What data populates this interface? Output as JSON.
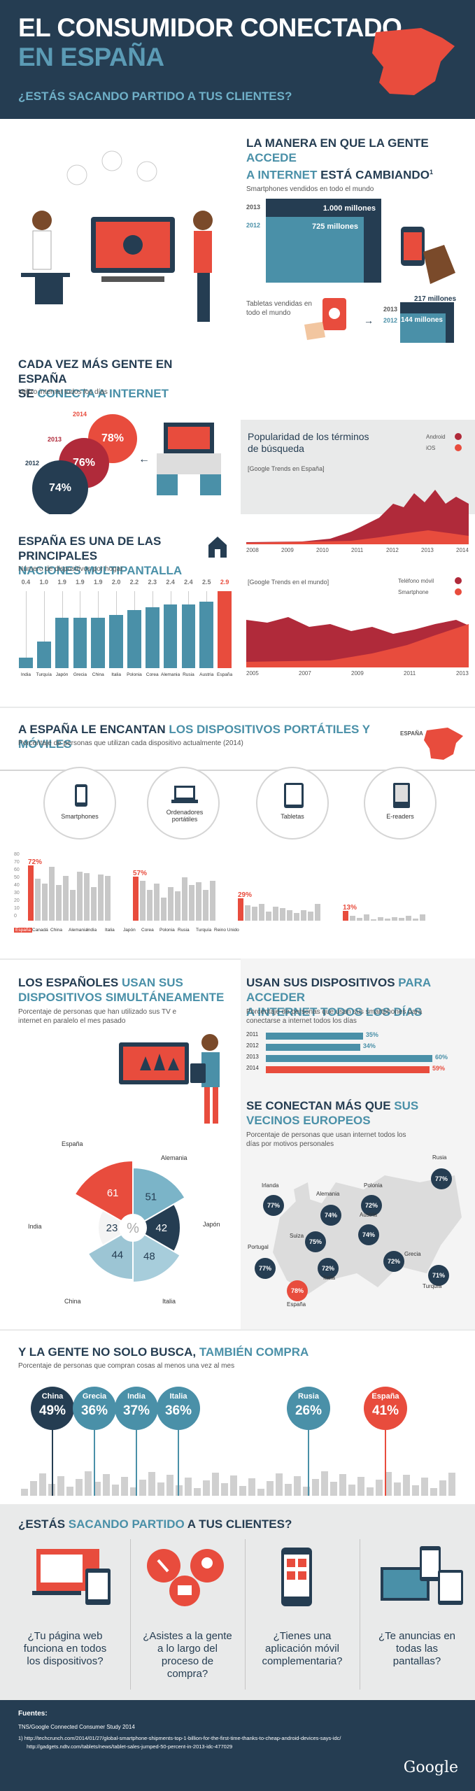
{
  "header": {
    "title_line1": "EL CONSUMIDOR CONECTADO",
    "title_line2": "EN ESPAÑA",
    "subtitle": "¿ESTÁS SACANDO PARTIDO A TUS CLIENTES?"
  },
  "access": {
    "title_pre": "LA MANERA EN QUE LA GENTE ",
    "title_accent": "ACCEDE",
    "title_line2_accent": "A INTERNET",
    "title_line2_rest": " ESTÁ CAMBIANDO",
    "footnote_mark": "1",
    "smartphones_label": "Smartphones vendidos en todo el mundo",
    "y2013": "2013",
    "y2012": "2012",
    "sm2013": "1.000 millones",
    "sm2012": "725 millones",
    "tablets_label": "Tabletas vendidas en todo el mundo",
    "tab2013": "217 millones",
    "tab2012": "144 millones"
  },
  "internet": {
    "title_line1": "CADA VEZ MÁS GENTE EN ESPAÑA",
    "title_line2_pre": "SE ",
    "title_line2_accent": "CONECTA A INTERNET",
    "caption": "Utilizo internet todos los días",
    "circles": [
      {
        "year": "2014",
        "value": "78%"
      },
      {
        "year": "2013",
        "value": "76%"
      },
      {
        "year": "2012",
        "value": "74%"
      }
    ]
  },
  "trends": {
    "title": "Popularidad de los términos de búsqueda",
    "source1": "[Google Trends en España]",
    "legend1a": "Android",
    "legend1b": "iOS",
    "ticks1": [
      "2008",
      "2009",
      "2010",
      "2011",
      "2012",
      "2013",
      "2014"
    ],
    "source2": "[Google Trends en el mundo]",
    "legend2a": "Teléfono móvil",
    "legend2b": "Smartphone",
    "ticks2": [
      "2005",
      "2007",
      "2009",
      "2011",
      "2013"
    ]
  },
  "multiscreen": {
    "title_line1": "ESPAÑA ES UNA DE LAS PRINCIPALES",
    "title_line2": "NACIONES MULTIPANTALLA",
    "caption": "Número de dispositivos por hogar",
    "countries": [
      "India",
      "Turquía",
      "Japón",
      "Grecia",
      "China",
      "Italia",
      "Polonia",
      "Corea",
      "Alemania",
      "Rusia",
      "Austria",
      "España"
    ],
    "values": [
      0.4,
      1.0,
      1.9,
      1.9,
      1.9,
      2.0,
      2.2,
      2.3,
      2.4,
      2.4,
      2.5,
      2.9
    ],
    "labels": [
      "0.4",
      "1.0",
      "1.9",
      "1.9",
      "1.9",
      "2.0",
      "2.2",
      "2.3",
      "2.4",
      "2.4",
      "2.5",
      "2.9"
    ]
  },
  "portables": {
    "title_pre": "A ESPAÑA LE ENCANTAN ",
    "title_accent": "LOS DISPOSITIVOS PORTÁTILES Y MÓVILES",
    "caption": "Porcentaje de personas que utilizan cada dispositivo actualmente (2014)",
    "map_label": "ESPAÑA",
    "devices": [
      "Smartphones",
      "Ordenadores portátiles",
      "Tabletas",
      "E-readers"
    ],
    "highlights": [
      "72%",
      "57%",
      "29%",
      "13%"
    ],
    "countries": [
      "España",
      "Canadá",
      "China",
      "Alemania",
      "India",
      "Italia",
      "Japón",
      "Corea",
      "Polonia",
      "Rusia",
      "Turquía",
      "Reino Unido"
    ],
    "yticks": [
      "80",
      "70",
      "60",
      "50",
      "40",
      "30",
      "20",
      "10",
      "0"
    ]
  },
  "simul": {
    "title_line1_pre": "LOS ESPAÑOLES ",
    "title_line1_accent": "USAN SUS",
    "title_line2": "DISPOSITIVOS SIMULTÁNEAMENTE",
    "caption": "Porcentaje de personas que han utilizado sus TV e internet en paralelo el mes pasado",
    "center": "%",
    "slices": [
      {
        "name": "España",
        "value": "61"
      },
      {
        "name": "Alemania",
        "value": "51"
      },
      {
        "name": "Japón",
        "value": "42"
      },
      {
        "name": "Italia",
        "value": "48"
      },
      {
        "name": "China",
        "value": "44"
      },
      {
        "name": "India",
        "value": "23"
      }
    ]
  },
  "daily": {
    "title_line1_pre": "USAN SUS DISPOSITIVOS ",
    "title_line1_accent": "PARA ACCEDER",
    "title_line2": "A INTERNET TODOS LOS DÍAS",
    "caption": "Porcentaje de personas que usan sus smartphones para conectarse a internet todos los días",
    "rows": [
      {
        "year": "2011",
        "value": "35%",
        "pct": 35
      },
      {
        "year": "2012",
        "value": "34%",
        "pct": 34
      },
      {
        "year": "2013",
        "value": "60%",
        "pct": 60
      },
      {
        "year": "2014",
        "value": "59%",
        "pct": 59
      }
    ]
  },
  "europe": {
    "title_line1_pre": "SE CONECTAN MÁS QUE ",
    "title_line1_accent": "SUS",
    "title_line2": "VECINOS EUROPEOS",
    "caption": "Porcentaje de personas que usan internet todos los días por motivos personales",
    "countries": [
      {
        "name": "Rusia",
        "value": "77%"
      },
      {
        "name": "Irlanda",
        "value": "77%"
      },
      {
        "name": "Alemania",
        "value": "74%"
      },
      {
        "name": "Polonia",
        "value": "72%"
      },
      {
        "name": "Suiza",
        "value": "75%"
      },
      {
        "name": "Austria",
        "value": "74%"
      },
      {
        "name": "Portugal",
        "value": "77%"
      },
      {
        "name": "Italia",
        "value": "72%"
      },
      {
        "name": "Grecia",
        "value": "72%"
      },
      {
        "name": "Turquía",
        "value": "71%"
      },
      {
        "name": "España",
        "value": "78%"
      }
    ]
  },
  "buy": {
    "title_pre": "Y LA GENTE NO SOLO BUSCA, ",
    "title_accent": "TAMBIÉN COMPRA",
    "caption": "Porcentaje de personas que compran cosas al menos una vez al mes",
    "countries": [
      {
        "name": "China",
        "value": "49%"
      },
      {
        "name": "Grecia",
        "value": "36%"
      },
      {
        "name": "India",
        "value": "37%"
      },
      {
        "name": "Italia",
        "value": "36%"
      },
      {
        "name": "Rusia",
        "value": "26%"
      },
      {
        "name": "España",
        "value": "41%"
      }
    ]
  },
  "clients": {
    "title_pre": "¿ESTÁS ",
    "title_accent": "SACANDO PARTIDO",
    "title_post": " A TUS CLIENTES?",
    "questions": [
      "¿Tu página web funciona en todos los dispositivos?",
      "¿Asistes a la gente a lo largo del proceso de compra?",
      "¿Tienes una aplicación móvil complementaria?",
      "¿Te anuncias en todas las pantallas?"
    ]
  },
  "footer": {
    "label": "Fuentes:",
    "source": "TNS/Google Connected Consumer Study 2014",
    "ref_mark": "1)",
    "ref1": "http://techcrunch.com/2014/01/27/global-smartphone-shipments-top-1-billion-for-the-first-time-thanks-to-cheap-android-devices-says-idc/",
    "ref2": "http://gadgets.ndtv.com/tablets/news/tablet-sales-jumped-50-percent-in-2013-idc-477029",
    "brand": "Google"
  },
  "colors": {
    "navy": "#253d52",
    "teal": "#4a90a8",
    "red": "#e84c3d",
    "grey": "#e9eaea"
  }
}
